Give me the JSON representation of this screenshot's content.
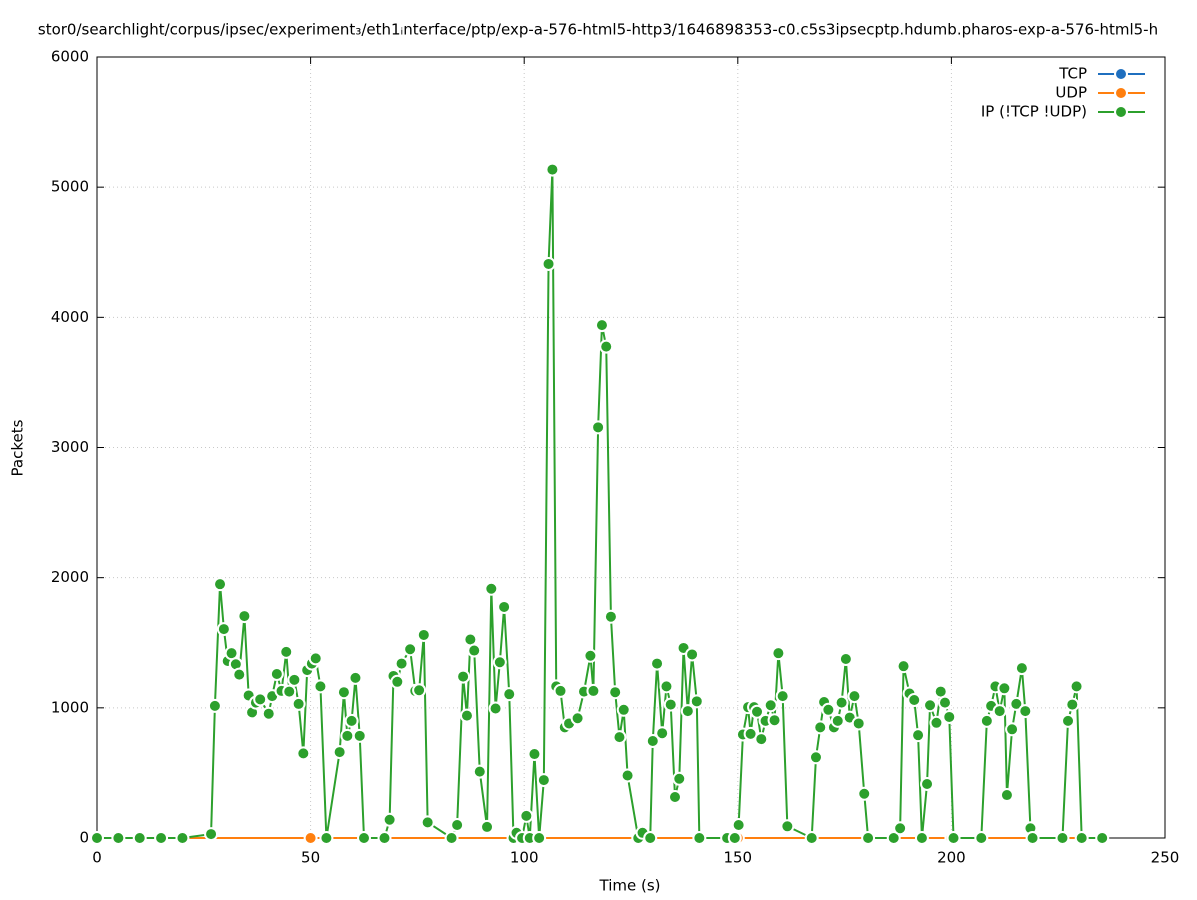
{
  "chart_data": {
    "type": "line",
    "title": "stor0/searchlight/corpus/ipsec/experiment₃/eth1ᵢnterface/ptp/exp-a-576-html5-http3/1646898353-c0.c5s3ipsecptp.hdumb.pharos-exp-a-576-html5-h",
    "xlabel": "Time (s)",
    "ylabel": "Packets",
    "xlim": [
      0,
      250
    ],
    "xticks": [
      0,
      50,
      100,
      150,
      200,
      250
    ],
    "ylim": [
      0,
      6000
    ],
    "yticks": [
      0,
      1000,
      2000,
      3000,
      4000,
      5000,
      6000
    ],
    "grid": true,
    "legend": "top-right",
    "series": [
      {
        "name": "TCP",
        "color": "#1f6fbf",
        "x": [
          0,
          50,
          100,
          150,
          200,
          235
        ],
        "values": [
          0,
          0,
          0,
          0,
          0,
          0
        ]
      },
      {
        "name": "UDP",
        "color": "#ff7f0e",
        "x": [
          0,
          50,
          100,
          150,
          200,
          235
        ],
        "values": [
          0,
          0,
          0,
          0,
          0,
          0
        ]
      },
      {
        "name": "IP (!TCP  !UDP)",
        "color": "#2ca02c",
        "x": [
          0,
          5,
          10,
          15,
          20,
          26.7,
          27.6,
          28.8,
          29.7,
          30.6,
          31.5,
          32.5,
          33.3,
          34.5,
          35.5,
          36.3,
          37.2,
          38.2,
          40.2,
          41,
          42.1,
          43.2,
          44.3,
          45,
          46.2,
          47.2,
          48.3,
          49.2,
          50.3,
          51.2,
          52.3,
          53.7,
          56.8,
          57.8,
          58.6,
          59.6,
          60.5,
          61.5,
          62.5,
          67.3,
          68.5,
          69.4,
          70.3,
          71.3,
          73.3,
          74.5,
          75.4,
          76.5,
          77.4,
          83,
          84.3,
          85.7,
          86.6,
          87.4,
          88.3,
          89.6,
          91.3,
          92.3,
          93.3,
          94.3,
          95.3,
          96.5,
          97.5,
          98.2,
          99.5,
          100.5,
          101.3,
          102.4,
          103.5,
          104.6,
          105.7,
          106.6,
          107.5,
          108.5,
          109.5,
          110.5,
          112.5,
          114,
          115.5,
          116.2,
          117.3,
          118.2,
          119.2,
          120.3,
          121.3,
          122.3,
          123.3,
          124.2,
          126.7,
          127.7,
          129.5,
          130.1,
          131.1,
          132.3,
          133.3,
          134.3,
          135.3,
          136.3,
          137.3,
          138.3,
          139.3,
          140.4,
          141,
          147.5,
          149.3,
          150.2,
          151.2,
          152.4,
          153,
          153.8,
          154.5,
          155.5,
          156.5,
          157.7,
          158.6,
          159.5,
          160.5,
          161.6,
          167.3,
          168.3,
          169.3,
          170.2,
          171.2,
          172.5,
          173.4,
          174.3,
          175.3,
          176.2,
          177.3,
          178.3,
          179.6,
          180.5,
          186.5,
          188,
          188.8,
          190.2,
          191.3,
          192.2,
          193.1,
          194.3,
          195,
          196.5,
          197.5,
          198.5,
          199.5,
          200.5,
          207,
          208.3,
          209.3,
          210.3,
          211.3,
          212.4,
          213,
          214.2,
          215.2,
          216.5,
          217.3,
          218.5,
          219,
          226,
          227.3,
          228.3,
          229.3,
          230.5,
          235.3
        ],
        "values": [
          0,
          0,
          0,
          0,
          0,
          30,
          1015,
          1950,
          1605,
          1360,
          1420,
          1335,
          1255,
          1705,
          1095,
          965,
          1040,
          1065,
          955,
          1090,
          1260,
          1130,
          1430,
          1125,
          1215,
          1030,
          650,
          1290,
          1340,
          1380,
          1165,
          0,
          660,
          1120,
          785,
          900,
          1230,
          785,
          0,
          0,
          140,
          1245,
          1200,
          1340,
          1450,
          1130,
          1135,
          1560,
          120,
          0,
          100,
          1240,
          940,
          1525,
          1440,
          510,
          85,
          1915,
          995,
          1350,
          1775,
          1105,
          0,
          40,
          0,
          170,
          0,
          645,
          0,
          445,
          4410,
          5135,
          1165,
          1130,
          850,
          880,
          920,
          1125,
          1400,
          1130,
          3155,
          3940,
          3775,
          1700,
          1120,
          775,
          985,
          480,
          0,
          40,
          0,
          745,
          1340,
          805,
          1165,
          1025,
          315,
          455,
          1460,
          975,
          1410,
          1050,
          0,
          0,
          0,
          100,
          795,
          1005,
          800,
          1005,
          970,
          760,
          900,
          1020,
          905,
          1420,
          1090,
          90,
          0,
          620,
          850,
          1045,
          985,
          850,
          900,
          1040,
          1375,
          925,
          1090,
          880,
          340,
          0,
          0,
          75,
          1320,
          1110,
          1060,
          790,
          0,
          415,
          1020,
          885,
          1125,
          1040,
          930,
          0,
          0,
          900,
          1015,
          1165,
          975,
          1150,
          330,
          835,
          1030,
          1305,
          975,
          75,
          0,
          0,
          900,
          1025,
          1165,
          0,
          0
        ]
      }
    ]
  }
}
